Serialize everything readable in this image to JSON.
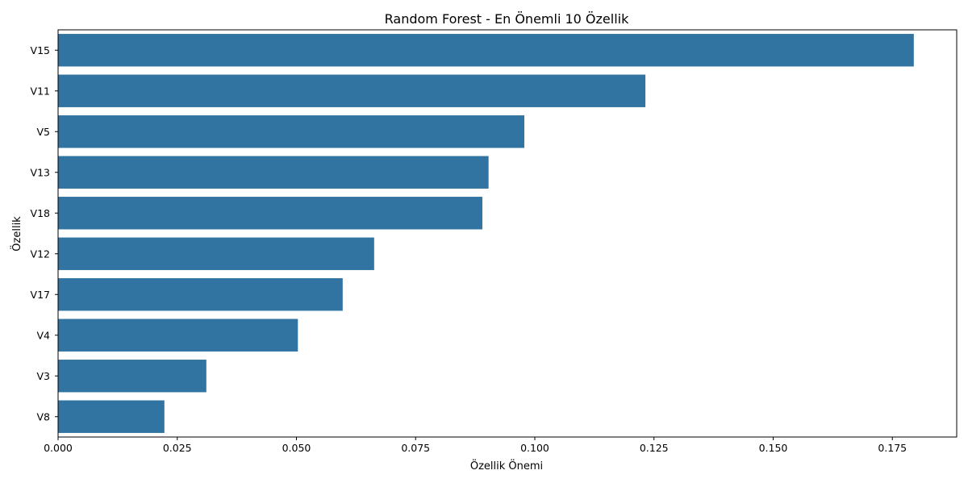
{
  "chart_data": {
    "type": "bar",
    "orientation": "horizontal",
    "title": "Random Forest - En Önemli 10 Özellik",
    "xlabel": "Özellik Önemi",
    "ylabel": "Özellik",
    "categories": [
      "V15",
      "V11",
      "V5",
      "V13",
      "V18",
      "V12",
      "V17",
      "V4",
      "V3",
      "V8"
    ],
    "values": [
      0.1795,
      0.1232,
      0.0978,
      0.0903,
      0.089,
      0.0663,
      0.0597,
      0.0503,
      0.0311,
      0.0223
    ],
    "xlim": [
      0,
      0.1885
    ],
    "xticks": [
      "0.000",
      "0.025",
      "0.050",
      "0.075",
      "0.100",
      "0.125",
      "0.150",
      "0.175"
    ],
    "grid": false,
    "bar_color": "#3274a1"
  }
}
